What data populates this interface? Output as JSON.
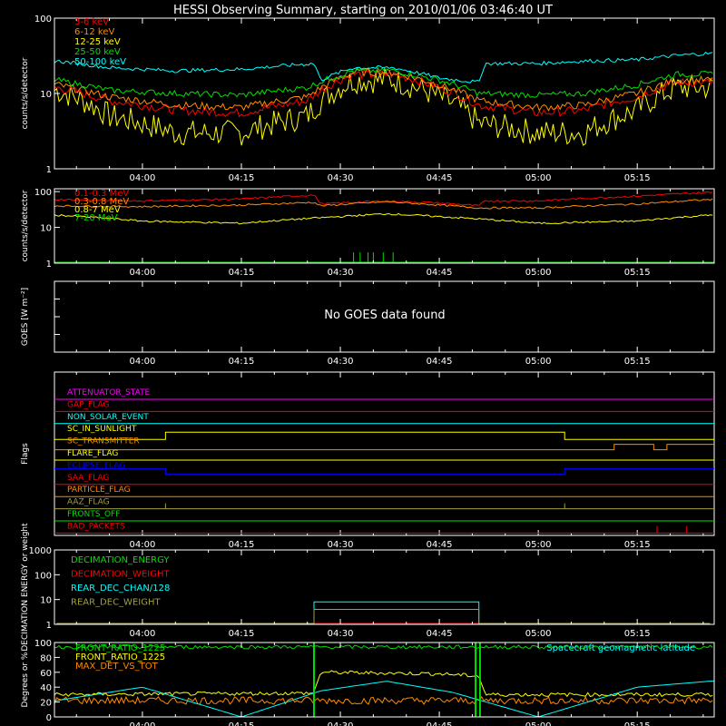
{
  "title": "HESSI Observing Summary, starting on 2010/01/06 03:46:40 UT",
  "colors": {
    "background": "#000000",
    "axes": "#ffffff",
    "red": "#ff0000",
    "orange": "#ff8a00",
    "yellow": "#ffff00",
    "green": "#00e000",
    "cyan": "#00ffff",
    "magenta": "#ff00ff",
    "blue": "#0000ff",
    "olive": "#a0a040",
    "white": "#ffffff"
  },
  "time_ticks": [
    "04:00",
    "04:15",
    "04:30",
    "04:45",
    "05:00",
    "05:15"
  ],
  "chart_data": [
    {
      "id": "panel1",
      "type": "line",
      "ylabel": "counts/s/detector",
      "yscale": "log",
      "ylim": [
        1,
        100
      ],
      "yticks": [
        "1",
        "10",
        "100"
      ],
      "xlim": [
        "03:46:40",
        "05:26:40"
      ],
      "series": [
        {
          "name": "3-6 keV",
          "color": "#ff0000",
          "x": [
            "03:47",
            "03:55",
            "04:05",
            "04:15",
            "04:25",
            "04:32",
            "04:38",
            "04:45",
            "04:51",
            "05:00",
            "05:07",
            "05:15",
            "05:21",
            "05:26"
          ],
          "values": [
            12,
            8,
            6,
            5.5,
            8,
            18,
            18,
            12,
            7,
            5.5,
            6,
            9,
            14,
            14
          ]
        },
        {
          "name": "6-12 keV",
          "color": "#ff8a00",
          "x": [
            "03:47",
            "03:55",
            "04:05",
            "04:15",
            "04:25",
            "04:32",
            "04:38",
            "04:45",
            "04:51",
            "05:00",
            "05:07",
            "05:15",
            "05:21",
            "05:26"
          ],
          "values": [
            13,
            9,
            7,
            6.5,
            9,
            19,
            19,
            13,
            8,
            6.5,
            7,
            10,
            15,
            15
          ]
        },
        {
          "name": "12-25 keV",
          "color": "#ffff00",
          "x": [
            "03:47",
            "03:55",
            "04:05",
            "04:15",
            "04:25",
            "04:32",
            "04:38",
            "04:45",
            "04:51",
            "05:00",
            "05:07",
            "05:15",
            "05:21",
            "05:26"
          ],
          "values": [
            11,
            5,
            3,
            3,
            5,
            15,
            15,
            9,
            4,
            3,
            3,
            6,
            12,
            12
          ]
        },
        {
          "name": "25-50 keV",
          "color": "#00e000",
          "x": [
            "03:47",
            "03:55",
            "04:05",
            "04:15",
            "04:25",
            "04:32",
            "04:38",
            "04:45",
            "04:51",
            "05:00",
            "05:07",
            "05:15",
            "05:21",
            "05:26"
          ],
          "values": [
            15,
            11,
            10,
            9.5,
            12,
            20,
            20,
            15,
            10,
            9.5,
            10,
            13,
            18,
            18
          ]
        },
        {
          "name": "50-100 keV",
          "color": "#00ffff",
          "x": [
            "03:47",
            "03:55",
            "04:05",
            "04:15",
            "04:26",
            "04:27",
            "04:32",
            "04:38",
            "04:45",
            "04:51",
            "04:52",
            "05:00",
            "05:07",
            "05:15",
            "05:21",
            "05:26"
          ],
          "values": [
            27,
            22,
            20,
            21,
            25,
            15,
            22,
            22,
            16,
            14,
            25,
            25,
            27,
            28,
            32,
            34
          ]
        }
      ]
    },
    {
      "id": "panel2",
      "type": "line",
      "ylabel": "counts/s/detector",
      "yscale": "log",
      "ylim": [
        1,
        120
      ],
      "yticks": [
        "1",
        "10",
        "100"
      ],
      "series": [
        {
          "name": "0.1-0.3 MeV",
          "color": "#ff0000",
          "x": [
            "03:47",
            "04:00",
            "04:15",
            "04:26",
            "04:27",
            "04:37",
            "04:45",
            "04:51",
            "04:52",
            "05:00",
            "05:15",
            "05:26"
          ],
          "values": [
            60,
            55,
            62,
            80,
            45,
            55,
            48,
            40,
            55,
            55,
            75,
            95
          ]
        },
        {
          "name": "0.3-0.8 MeV",
          "color": "#ff8a00",
          "x": [
            "03:47",
            "04:00",
            "04:15",
            "04:26",
            "04:27",
            "04:37",
            "04:45",
            "04:51",
            "04:52",
            "05:00",
            "05:15",
            "05:26"
          ],
          "values": [
            40,
            38,
            42,
            50,
            40,
            52,
            42,
            35,
            35,
            35,
            45,
            60
          ]
        },
        {
          "name": "0.8-7 MeV",
          "color": "#ffff00",
          "x": [
            "03:47",
            "04:00",
            "04:15",
            "04:30",
            "04:37",
            "04:45",
            "05:00",
            "05:15",
            "05:26"
          ],
          "values": [
            22,
            15,
            13,
            20,
            24,
            20,
            13,
            15,
            22
          ]
        },
        {
          "name": "7-20 MeV",
          "color": "#00e000",
          "x": [
            "03:47",
            "05:26"
          ],
          "values": [
            1,
            1
          ]
        }
      ]
    },
    {
      "id": "panel3",
      "type": "line",
      "ylabel": "GOES [W m⁻²]",
      "message": "No GOES data found",
      "series": []
    },
    {
      "id": "panel4",
      "type": "line",
      "ylabel": "Flags",
      "flags": [
        {
          "name": "ATTENUATOR_STATE",
          "color": "#ff00ff"
        },
        {
          "name": "GAP_FLAG",
          "color": "#ff0000"
        },
        {
          "name": "NON_SOLAR_EVENT",
          "color": "#00ffff"
        },
        {
          "name": "SC_IN_SUNLIGHT",
          "color": "#ffff00"
        },
        {
          "name": "SC_TRANSMITTER",
          "color": "#ff8a00"
        },
        {
          "name": "FLARE_FLAG",
          "color": "#ffff00"
        },
        {
          "name": "ECLIPSE_FLAG",
          "color": "#0000ff"
        },
        {
          "name": "SAA_FLAG",
          "color": "#ff0000"
        },
        {
          "name": "PARTICLE_FLAG",
          "color": "#ff8a00"
        },
        {
          "name": "AAZ_FLAG",
          "color": "#a0a040"
        },
        {
          "name": "FRONTS_OFF",
          "color": "#00e000"
        },
        {
          "name": "BAD_PACKETS",
          "color": "#ff0000"
        }
      ]
    },
    {
      "id": "panel5",
      "type": "line",
      "ylabel": "DECIMATION ENERGY or weight",
      "yscale": "log",
      "ylim": [
        1,
        1000
      ],
      "yticks": [
        "1",
        "10",
        "100",
        "1000"
      ],
      "series": [
        {
          "name": "DECIMATION_ENERGY",
          "color": "#00e000",
          "x": [
            "03:47",
            "05:26"
          ],
          "values": [
            1,
            1
          ]
        },
        {
          "name": "DECIMATION_WEIGHT",
          "color": "#ff0000",
          "x": [
            "03:47",
            "05:26"
          ],
          "values": [
            1,
            1
          ]
        },
        {
          "name": "REAR_DEC_CHAN/128",
          "color": "#00ffff",
          "x": [
            "03:47",
            "04:26",
            "04:26",
            "04:51",
            "04:51",
            "05:26"
          ],
          "values": [
            1,
            1,
            8,
            8,
            1,
            1
          ]
        },
        {
          "name": "REAR_DEC_WEIGHT",
          "color": "#a0a040",
          "x": [
            "03:47",
            "04:26",
            "04:26",
            "04:51",
            "04:51",
            "05:26"
          ],
          "values": [
            1,
            1,
            4,
            4,
            1,
            1
          ]
        }
      ]
    },
    {
      "id": "panel6",
      "type": "line",
      "ylabel": "Degrees or %",
      "ylim": [
        0,
        100
      ],
      "yticks": [
        "0",
        "20",
        "40",
        "60",
        "80",
        "100"
      ],
      "series": [
        {
          "name": "FRONT_RATIO_1225",
          "color": "#ffff00",
          "x": [
            "03:47",
            "04:26",
            "04:27",
            "04:45",
            "04:51",
            "04:52",
            "05:26"
          ],
          "values": [
            30,
            32,
            60,
            58,
            55,
            30,
            30
          ]
        },
        {
          "name": "FRONT_RATIO_1225",
          "color": "#00e000",
          "x": [
            "03:47",
            "05:26"
          ],
          "values": [
            94,
            94
          ]
        },
        {
          "name": "MAX_DET_VS_TOT",
          "color": "#ff8a00",
          "x": [
            "03:47",
            "05:26"
          ],
          "values": [
            22,
            22
          ]
        },
        {
          "name": "Spacecraft geomagnetic latitude",
          "color": "#00ffff",
          "x": [
            "03:47",
            "04:00",
            "04:15",
            "04:27",
            "04:37",
            "04:47",
            "05:00",
            "05:15",
            "05:26"
          ],
          "values": [
            22,
            40,
            0,
            35,
            48,
            33,
            0,
            40,
            48
          ]
        }
      ]
    }
  ]
}
